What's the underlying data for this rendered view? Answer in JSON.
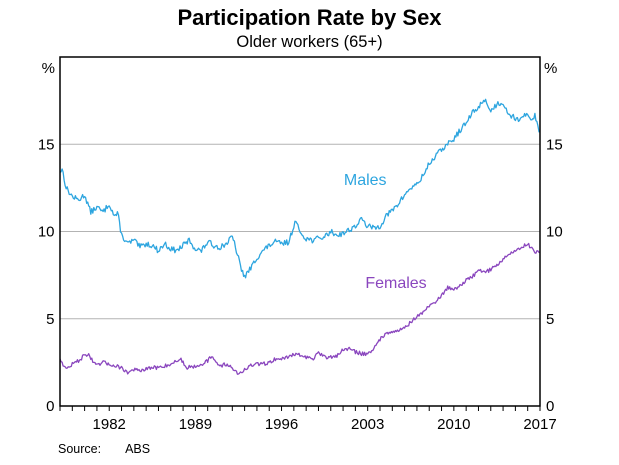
{
  "header": {
    "title": "Participation Rate by Sex",
    "subtitle": "Older workers (65+)"
  },
  "footer": {
    "source_label": "Source:",
    "source_value": "ABS"
  },
  "chart_data": {
    "type": "line",
    "title": "Participation Rate by Sex",
    "subtitle": "Older workers (65+)",
    "xlabel": "",
    "ylabel": "%",
    "unit_label": "%",
    "xlim": [
      1978,
      2017
    ],
    "ylim": [
      0,
      20
    ],
    "grid": "horizontal",
    "y_gridlines": [
      5,
      10,
      15
    ],
    "y_ticks": [
      0,
      5,
      10,
      15
    ],
    "x_ticks": [
      1982,
      1989,
      1996,
      2003,
      2010,
      2017
    ],
    "x_minor_tick_interval_years": 1,
    "legend_position": "inline-labels",
    "colors": {
      "males": "#2DA5DF",
      "females": "#8A46BE",
      "grid": "#b3b3b3",
      "axis": "#000000"
    },
    "series": [
      {
        "name": "Males",
        "color_key": "males",
        "label_anchor": {
          "x": 2002.8,
          "y": 12.9
        },
        "points": [
          [
            1978.0,
            13.4
          ],
          [
            1978.17,
            13.6
          ],
          [
            1978.5,
            12.5
          ],
          [
            1979.0,
            12.0
          ],
          [
            1979.5,
            11.8
          ],
          [
            1980.0,
            12.1
          ],
          [
            1980.5,
            11.1
          ],
          [
            1981.0,
            11.4
          ],
          [
            1981.5,
            11.1
          ],
          [
            1982.0,
            11.6
          ],
          [
            1982.4,
            10.9
          ],
          [
            1982.7,
            11.0
          ],
          [
            1983.0,
            9.8
          ],
          [
            1983.5,
            9.3
          ],
          [
            1984.0,
            9.5
          ],
          [
            1984.5,
            9.1
          ],
          [
            1985.0,
            9.3
          ],
          [
            1985.5,
            9.2
          ],
          [
            1986.0,
            8.9
          ],
          [
            1986.5,
            9.3
          ],
          [
            1987.0,
            9.0
          ],
          [
            1987.5,
            8.9
          ],
          [
            1988.0,
            9.2
          ],
          [
            1988.5,
            9.5
          ],
          [
            1989.0,
            9.0
          ],
          [
            1989.5,
            8.9
          ],
          [
            1990.0,
            9.4
          ],
          [
            1990.5,
            9.2
          ],
          [
            1991.0,
            9.1
          ],
          [
            1991.5,
            9.3
          ],
          [
            1992.0,
            9.7
          ],
          [
            1992.3,
            9.0
          ],
          [
            1992.7,
            7.9
          ],
          [
            1993.0,
            7.4
          ],
          [
            1993.5,
            7.9
          ],
          [
            1994.0,
            8.5
          ],
          [
            1994.5,
            8.9
          ],
          [
            1995.0,
            9.2
          ],
          [
            1995.5,
            9.4
          ],
          [
            1996.0,
            9.3
          ],
          [
            1996.6,
            9.4
          ],
          [
            1997.1,
            10.6
          ],
          [
            1997.5,
            10.0
          ],
          [
            1998.0,
            9.6
          ],
          [
            1998.5,
            9.5
          ],
          [
            1999.0,
            9.6
          ],
          [
            1999.5,
            9.7
          ],
          [
            2000.0,
            10.0
          ],
          [
            2000.5,
            9.8
          ],
          [
            2001.0,
            9.9
          ],
          [
            2001.5,
            10.1
          ],
          [
            2002.0,
            10.3
          ],
          [
            2002.5,
            10.7
          ],
          [
            2003.0,
            10.3
          ],
          [
            2003.5,
            10.2
          ],
          [
            2004.0,
            10.3
          ],
          [
            2004.5,
            10.9
          ],
          [
            2005.0,
            11.2
          ],
          [
            2005.5,
            11.6
          ],
          [
            2006.0,
            12.1
          ],
          [
            2006.5,
            12.5
          ],
          [
            2007.0,
            12.7
          ],
          [
            2007.5,
            13.2
          ],
          [
            2008.0,
            13.9
          ],
          [
            2008.5,
            14.3
          ],
          [
            2009.0,
            14.7
          ],
          [
            2009.5,
            15.0
          ],
          [
            2010.0,
            15.3
          ],
          [
            2010.5,
            15.8
          ],
          [
            2011.0,
            16.2
          ],
          [
            2011.5,
            16.8
          ],
          [
            2012.0,
            17.1
          ],
          [
            2012.5,
            17.6
          ],
          [
            2013.0,
            16.9
          ],
          [
            2013.5,
            17.3
          ],
          [
            2014.0,
            17.4
          ],
          [
            2014.5,
            16.7
          ],
          [
            2015.0,
            16.5
          ],
          [
            2015.5,
            16.4
          ],
          [
            2016.0,
            16.8
          ],
          [
            2016.3,
            16.4
          ],
          [
            2016.6,
            16.7
          ],
          [
            2016.92,
            15.7
          ]
        ]
      },
      {
        "name": "Females",
        "color_key": "females",
        "label_anchor": {
          "x": 2005.3,
          "y": 7.0
        },
        "points": [
          [
            1978.0,
            2.7
          ],
          [
            1978.5,
            2.1
          ],
          [
            1979.0,
            2.4
          ],
          [
            1979.5,
            2.6
          ],
          [
            1980.0,
            2.9
          ],
          [
            1980.3,
            3.0
          ],
          [
            1980.7,
            2.5
          ],
          [
            1981.0,
            2.3
          ],
          [
            1981.5,
            2.5
          ],
          [
            1982.0,
            2.4
          ],
          [
            1982.5,
            2.3
          ],
          [
            1983.0,
            2.2
          ],
          [
            1983.5,
            1.9
          ],
          [
            1984.0,
            2.1
          ],
          [
            1984.5,
            2.0
          ],
          [
            1985.0,
            2.1
          ],
          [
            1985.5,
            2.2
          ],
          [
            1986.0,
            2.2
          ],
          [
            1986.5,
            2.3
          ],
          [
            1987.0,
            2.4
          ],
          [
            1987.8,
            2.7
          ],
          [
            1988.3,
            2.2
          ],
          [
            1989.0,
            2.3
          ],
          [
            1989.5,
            2.4
          ],
          [
            1990.0,
            2.6
          ],
          [
            1990.3,
            2.8
          ],
          [
            1991.0,
            2.3
          ],
          [
            1991.5,
            2.4
          ],
          [
            1992.0,
            2.2
          ],
          [
            1992.5,
            1.8
          ],
          [
            1993.0,
            2.1
          ],
          [
            1993.5,
            2.3
          ],
          [
            1994.0,
            2.4
          ],
          [
            1994.5,
            2.4
          ],
          [
            1995.0,
            2.5
          ],
          [
            1995.5,
            2.7
          ],
          [
            1996.0,
            2.7
          ],
          [
            1996.5,
            2.8
          ],
          [
            1997.0,
            3.0
          ],
          [
            1997.5,
            2.9
          ],
          [
            1998.0,
            2.8
          ],
          [
            1998.5,
            2.7
          ],
          [
            1999.0,
            3.0
          ],
          [
            1999.5,
            2.8
          ],
          [
            2000.0,
            2.8
          ],
          [
            2000.5,
            2.9
          ],
          [
            2001.0,
            3.2
          ],
          [
            2001.5,
            3.3
          ],
          [
            2002.0,
            3.1
          ],
          [
            2002.5,
            3.0
          ],
          [
            2003.0,
            3.0
          ],
          [
            2003.5,
            3.3
          ],
          [
            2004.0,
            3.8
          ],
          [
            2004.5,
            4.2
          ],
          [
            2005.0,
            4.3
          ],
          [
            2005.5,
            4.3
          ],
          [
            2006.0,
            4.5
          ],
          [
            2006.5,
            4.8
          ],
          [
            2007.0,
            5.1
          ],
          [
            2007.5,
            5.4
          ],
          [
            2008.0,
            5.7
          ],
          [
            2008.5,
            6.0
          ],
          [
            2009.0,
            6.3
          ],
          [
            2009.5,
            6.8
          ],
          [
            2010.0,
            6.7
          ],
          [
            2010.5,
            6.9
          ],
          [
            2011.0,
            7.2
          ],
          [
            2011.5,
            7.4
          ],
          [
            2012.0,
            7.8
          ],
          [
            2012.5,
            7.7
          ],
          [
            2013.0,
            7.8
          ],
          [
            2013.5,
            8.1
          ],
          [
            2014.0,
            8.4
          ],
          [
            2014.5,
            8.7
          ],
          [
            2015.0,
            8.9
          ],
          [
            2015.5,
            9.1
          ],
          [
            2016.0,
            9.3
          ],
          [
            2016.5,
            8.9
          ],
          [
            2016.92,
            8.8
          ]
        ]
      }
    ]
  }
}
